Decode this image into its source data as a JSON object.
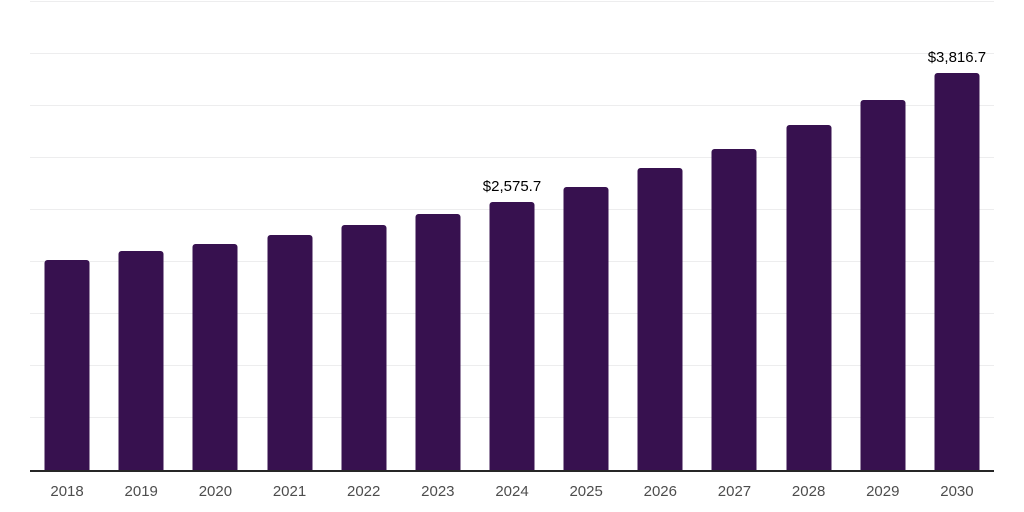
{
  "chart_data": {
    "type": "bar",
    "title": "",
    "xlabel": "",
    "ylabel": "",
    "categories": [
      "2018",
      "2019",
      "2020",
      "2021",
      "2022",
      "2023",
      "2024",
      "2025",
      "2026",
      "2027",
      "2028",
      "2029",
      "2030"
    ],
    "values": [
      2020,
      2105,
      2175,
      2260,
      2355,
      2465,
      2575.7,
      2720,
      2905,
      3090,
      3315,
      3555,
      3816.7
    ],
    "data_labels": [
      "",
      "",
      "",
      "",
      "",
      "",
      "$2,575.7",
      "",
      "",
      "",
      "",
      "",
      "$3,816.7"
    ],
    "ylim": [
      0,
      4500
    ],
    "gridline_step": 500,
    "grid": true,
    "legend": false,
    "colors": {
      "bar": "#37114F",
      "gridline": "#ededee",
      "axis_line": "#262626",
      "tick_label": "#4d4d4d",
      "data_label": "#000000",
      "background": "#ffffff"
    }
  }
}
